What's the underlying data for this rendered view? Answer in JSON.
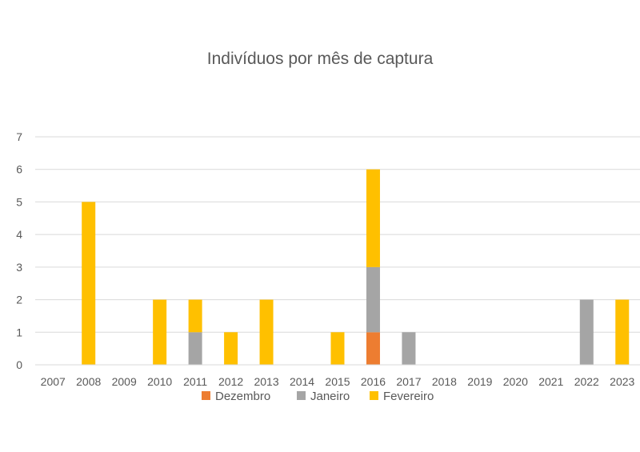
{
  "chart_data": {
    "type": "bar",
    "stacked": true,
    "title": "Indivíduos por mês de captura",
    "xlabel": "",
    "ylabel": "",
    "ylim": [
      0,
      7
    ],
    "yticks": [
      0,
      1,
      2,
      3,
      4,
      5,
      6,
      7
    ],
    "grid": true,
    "legend_position": "bottom",
    "categories": [
      "2007",
      "2008",
      "2009",
      "2010",
      "2011",
      "2012",
      "2013",
      "2014",
      "2015",
      "2016",
      "2017",
      "2018",
      "2019",
      "2020",
      "2021",
      "2022",
      "2023"
    ],
    "series": [
      {
        "name": "Dezembro",
        "color": "#ED7D31",
        "values": [
          0,
          0,
          0,
          0,
          0,
          0,
          0,
          0,
          0,
          1,
          0,
          0,
          0,
          0,
          0,
          0,
          0
        ]
      },
      {
        "name": "Janeiro",
        "color": "#A5A5A5",
        "values": [
          0,
          0,
          0,
          0,
          1,
          0,
          0,
          0,
          0,
          2,
          1,
          0,
          0,
          0,
          0,
          2,
          0
        ]
      },
      {
        "name": "Fevereiro",
        "color": "#FFC000",
        "values": [
          0,
          5,
          0,
          2,
          1,
          1,
          2,
          0,
          1,
          3,
          0,
          0,
          0,
          0,
          0,
          0,
          2
        ]
      }
    ]
  }
}
